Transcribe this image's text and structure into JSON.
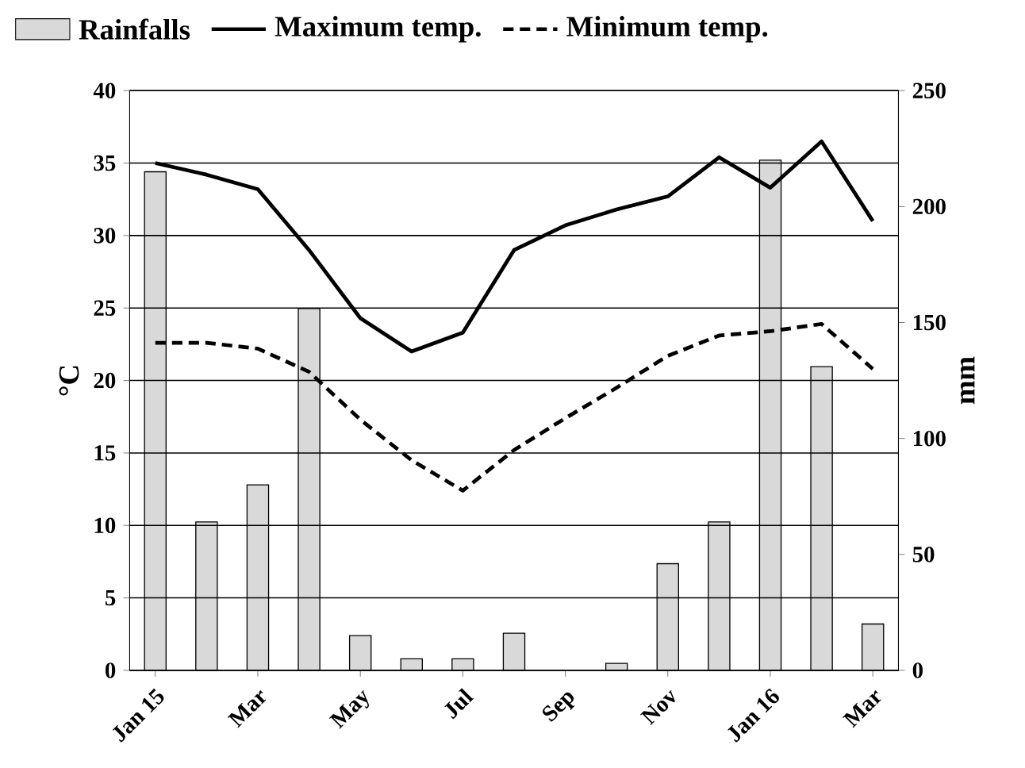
{
  "chart_data": {
    "type": "bar",
    "categories": [
      "Jan 15",
      null,
      "Mar",
      null,
      "May",
      null,
      "Jul",
      null,
      "Sep",
      null,
      "Nov",
      null,
      "Jan 16",
      null,
      "Mar"
    ],
    "ylabel": "°C",
    "y2label": "mm",
    "ylim": [
      0,
      40
    ],
    "yticks": [
      0,
      5,
      10,
      15,
      20,
      25,
      30,
      35,
      40
    ],
    "y2lim": [
      0,
      250
    ],
    "y2ticks": [
      0,
      50,
      100,
      150,
      200,
      250
    ],
    "grid": "y",
    "legend": "top",
    "series": [
      {
        "name": "Rainfalls",
        "axis": "y2",
        "color": "#d9d9d9",
        "values": [
          215,
          64,
          80,
          156,
          15,
          5,
          5,
          16,
          null,
          3,
          46,
          64,
          220,
          131,
          20
        ]
      },
      {
        "name": "Maximum temp.",
        "type": "line",
        "line_style": "solid",
        "color": "#000000",
        "values": [
          35,
          34.2,
          33.2,
          29,
          24.3,
          22,
          23.3,
          29,
          30.7,
          31.8,
          32.7,
          35.4,
          33.3,
          36.5,
          31
        ]
      },
      {
        "name": "Minimum temp.",
        "type": "line",
        "line_style": "dashed",
        "color": "#000000",
        "values": [
          22.6,
          22.6,
          22.2,
          20.6,
          17.3,
          14.5,
          12.4,
          15.2,
          17.4,
          19.5,
          21.7,
          23.1,
          23.4,
          23.9,
          20.8
        ]
      }
    ]
  }
}
